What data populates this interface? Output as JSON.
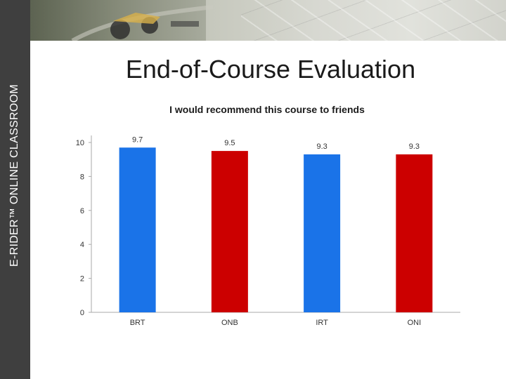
{
  "sidebar": {
    "label": "E-RIDER™ ONLINE CLASSROOM"
  },
  "slide": {
    "title": "End-of-Course Evaluation"
  },
  "chart_data": {
    "type": "bar",
    "title": "I would recommend this course to friends",
    "categories": [
      "BRT",
      "ONB",
      "IRT",
      "ONI"
    ],
    "values": [
      9.7,
      9.5,
      9.3,
      9.3
    ],
    "value_labels": [
      "9.7",
      "9.5",
      "9.3",
      "9.3"
    ],
    "colors": [
      "#1a73e8",
      "#cc0000",
      "#1a73e8",
      "#cc0000"
    ],
    "ylim": [
      0,
      10
    ],
    "yticks": [
      0,
      2,
      4,
      6,
      8,
      10
    ],
    "xlabel": "",
    "ylabel": "",
    "grid": false,
    "legend": "none"
  }
}
